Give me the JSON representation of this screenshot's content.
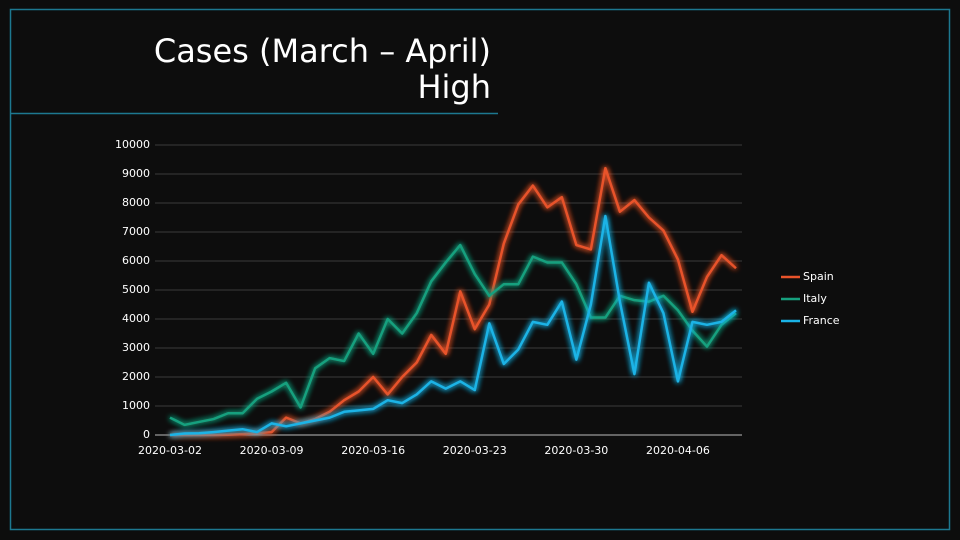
{
  "chart_data": {
    "type": "line",
    "title": "Cases (March – April)",
    "subtitle": "High",
    "categories": [
      "2020-03-02",
      null,
      null,
      null,
      null,
      null,
      null,
      "2020-03-09",
      null,
      null,
      null,
      null,
      null,
      null,
      "2020-03-16",
      null,
      null,
      null,
      null,
      null,
      null,
      "2020-03-23",
      null,
      null,
      null,
      null,
      null,
      null,
      "2020-03-30",
      null,
      null,
      null,
      null,
      null,
      null,
      "2020-04-06",
      null,
      null,
      null,
      null
    ],
    "series": [
      {
        "name": "Spain",
        "color": "#e8532a",
        "values": [
          0,
          0,
          0,
          0,
          10,
          30,
          60,
          100,
          600,
          400,
          550,
          800,
          1200,
          1500,
          2000,
          1400,
          2000,
          2500,
          3450,
          2800,
          4950,
          3650,
          4500,
          6600,
          7950,
          8600,
          7850,
          8200,
          6550,
          6400,
          9200,
          7700,
          8100,
          7500,
          7050,
          6050,
          4250,
          5450,
          6200,
          5750
        ]
      },
      {
        "name": "Italy",
        "color": "#16a07e",
        "values": [
          600,
          350,
          450,
          550,
          750,
          750,
          1250,
          1500,
          1800,
          950,
          2300,
          2650,
          2550,
          3500,
          2800,
          4000,
          3500,
          4200,
          5300,
          5950,
          6550,
          5550,
          4800,
          5200,
          5200,
          6150,
          5950,
          5950,
          5200,
          4050,
          4050,
          4800,
          4650,
          4600,
          4800,
          4300,
          3600,
          3050,
          3800,
          4200
        ]
      },
      {
        "name": "France",
        "color": "#1ab3e6",
        "values": [
          0,
          50,
          60,
          100,
          150,
          200,
          100,
          400,
          300,
          400,
          500,
          600,
          800,
          850,
          900,
          1200,
          1100,
          1400,
          1850,
          1600,
          1850,
          1550,
          3850,
          2450,
          2950,
          3900,
          3800,
          4600,
          2600,
          4500,
          7550,
          4600,
          2100,
          5250,
          4200,
          1850,
          3900,
          3800,
          3900,
          4300
        ]
      }
    ],
    "ylim": [
      0,
      10000
    ],
    "yticks": [
      0,
      1000,
      2000,
      3000,
      4000,
      5000,
      6000,
      7000,
      8000,
      9000,
      10000
    ],
    "grid": true,
    "legend": "right"
  }
}
